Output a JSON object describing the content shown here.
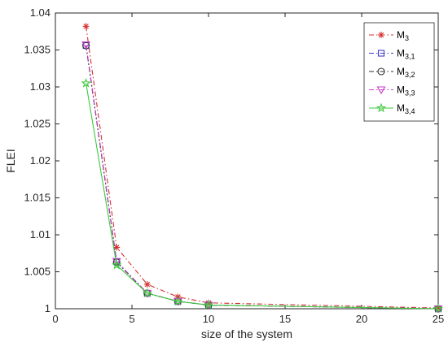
{
  "chart_data": {
    "type": "line",
    "title": "",
    "xlabel": "size of the system",
    "ylabel": "FLEI",
    "xlim": [
      0,
      25
    ],
    "ylim": [
      1,
      1.04
    ],
    "xticks": [
      0,
      5,
      10,
      15,
      20,
      25
    ],
    "yticks": [
      1,
      1.005,
      1.01,
      1.015,
      1.02,
      1.025,
      1.03,
      1.035,
      1.04
    ],
    "x": [
      2,
      4,
      6,
      8,
      10,
      25
    ],
    "grid": false,
    "legend_position": "top-right",
    "series": [
      {
        "name": "M",
        "sub": "3",
        "color": "#d62f2f",
        "marker": "asterisk",
        "dash": "dashdot",
        "values": [
          1.0382,
          1.0083,
          1.0033,
          1.0016,
          1.0008,
          1.0001
        ]
      },
      {
        "name": "M",
        "sub": "3,1",
        "color": "#4040c8",
        "marker": "square",
        "dash": "dashdot",
        "values": [
          1.0356,
          1.0064,
          1.0021,
          1.001,
          1.0005,
          1.0
        ]
      },
      {
        "name": "M",
        "sub": "3,2",
        "color": "#303030",
        "marker": "circle",
        "dash": "dashdot",
        "values": [
          1.0356,
          1.0063,
          1.0021,
          1.001,
          1.0005,
          1.0
        ]
      },
      {
        "name": "M",
        "sub": "3,3",
        "color": "#c83cc8",
        "marker": "triangle-down",
        "dash": "dashdot",
        "values": [
          1.0357,
          1.0064,
          1.0021,
          1.001,
          1.0005,
          1.0
        ]
      },
      {
        "name": "M",
        "sub": "3,4",
        "color": "#3cc83c",
        "marker": "star",
        "dash": "solid",
        "values": [
          1.0305,
          1.0059,
          1.0021,
          1.001,
          1.0005,
          1.0
        ]
      }
    ]
  }
}
